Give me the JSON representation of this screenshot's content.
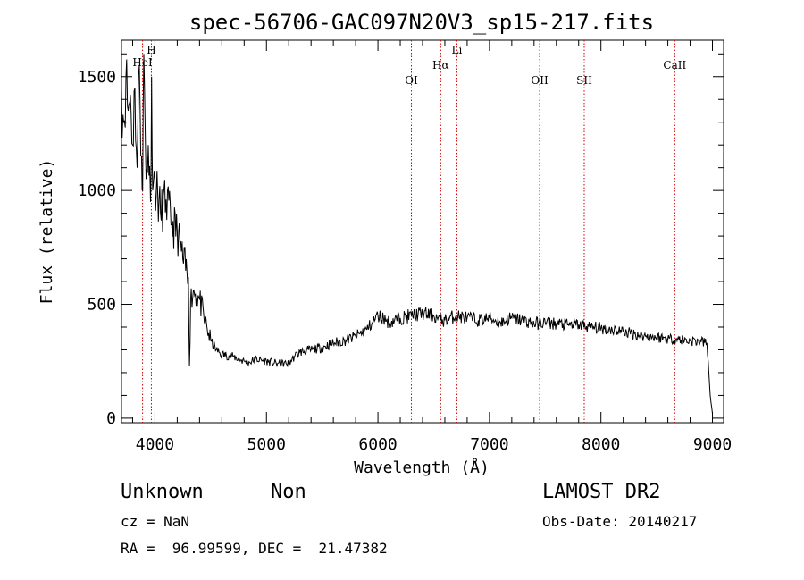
{
  "chart_data": {
    "type": "line",
    "title": "spec-56706-GAC097N20V3_sp15-217.fits",
    "xlabel": "Wavelength (Å)",
    "ylabel": "Flux (relative)",
    "xlim": [
      3700,
      9100
    ],
    "ylim": [
      -20,
      1660
    ],
    "xticks": [
      4000,
      5000,
      6000,
      7000,
      8000,
      9000
    ],
    "xtick_labels": [
      "4000",
      "5000",
      "6000",
      "7000",
      "8000",
      "9000"
    ],
    "yticks": [
      0,
      500,
      1000,
      1500
    ],
    "ytick_labels": [
      "0",
      "500",
      "1000",
      "1500"
    ],
    "grid": false,
    "series": [
      {
        "color": "#000000",
        "x": [
          3700,
          3720,
          3740,
          3760,
          3780,
          3800,
          3820,
          3840,
          3860,
          3880,
          3890,
          3900,
          3920,
          3940,
          3960,
          3970,
          3980,
          4000,
          4050,
          4100,
          4150,
          4200,
          4250,
          4300,
          4310,
          4320,
          4350,
          4400,
          4450,
          4500,
          4550,
          4600,
          4700,
          4800,
          4850,
          4900,
          5000,
          5100,
          5200,
          5250,
          5300,
          5400,
          5500,
          5600,
          5700,
          5800,
          5900,
          5950,
          6000,
          6050,
          6100,
          6200,
          6300,
          6400,
          6500,
          6560,
          6600,
          6700,
          6800,
          6900,
          7000,
          7100,
          7200,
          7300,
          7400,
          7500,
          7600,
          7700,
          7800,
          7900,
          8000,
          8100,
          8200,
          8300,
          8400,
          8500,
          8600,
          8700,
          8800,
          8900,
          8950,
          8980,
          9000
        ],
        "y": [
          1450,
          1300,
          1500,
          1350,
          1420,
          1200,
          1450,
          1100,
          1550,
          1150,
          1000,
          1600,
          1050,
          1200,
          950,
          1500,
          1000,
          1050,
          900,
          960,
          850,
          820,
          700,
          620,
          230,
          520,
          560,
          520,
          420,
          340,
          300,
          280,
          270,
          250,
          245,
          260,
          250,
          240,
          240,
          270,
          290,
          300,
          310,
          330,
          340,
          360,
          390,
          420,
          450,
          440,
          420,
          440,
          450,
          460,
          450,
          430,
          430,
          450,
          440,
          430,
          440,
          420,
          440,
          430,
          415,
          420,
          415,
          410,
          410,
          400,
          395,
          390,
          380,
          370,
          360,
          355,
          350,
          345,
          340,
          335,
          330,
          100,
          20
        ]
      }
    ],
    "vlines": [
      {
        "label": "HeI",
        "x": 3889
      },
      {
        "label": "H",
        "x": 3968
      },
      {
        "label": "OI",
        "x": 6300
      },
      {
        "label": "Hα",
        "x": 6563
      },
      {
        "label": "Li",
        "x": 6708
      },
      {
        "label": "OII",
        "x": 7450
      },
      {
        "label": "SII",
        "x": 7850
      },
      {
        "label": "CaII",
        "x": 8662
      }
    ],
    "vline_color": "#cc0000"
  },
  "info": {
    "object": "Unknown",
    "class": "Non",
    "survey": "LAMOST DR2",
    "cz": "cz = NaN",
    "obs_date": "Obs-Date: 20140217",
    "coords": "RA =  96.99599, DEC =  21.47382"
  }
}
